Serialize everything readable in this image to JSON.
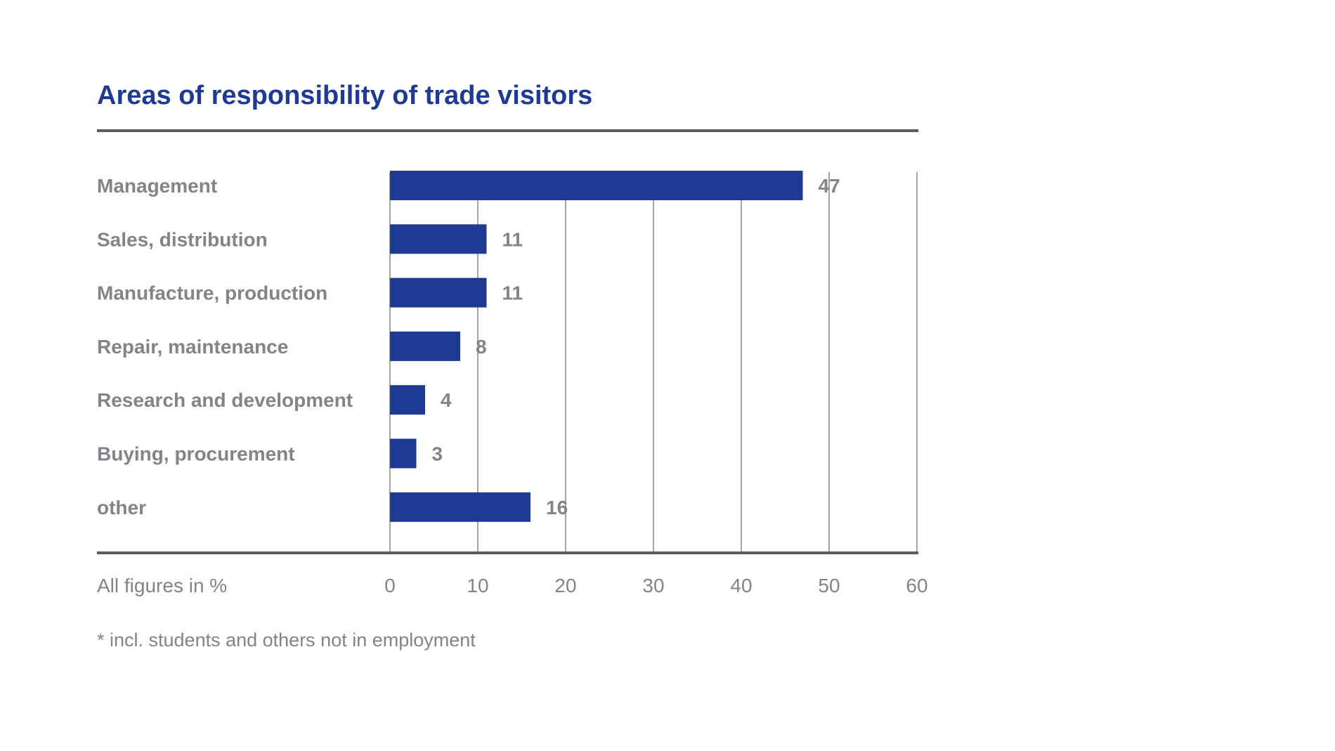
{
  "chart_data": {
    "type": "bar",
    "orientation": "horizontal",
    "title": "Areas of responsibility of trade visitors",
    "categories": [
      "Management",
      "Sales, distribution",
      "Manufacture, production",
      "Repair, maintenance",
      "Research and development",
      "Buying, procurement",
      "other"
    ],
    "values": [
      47,
      11,
      11,
      8,
      4,
      3,
      16
    ],
    "data_labels": [
      "47",
      "11",
      "11",
      "8",
      "4",
      "3",
      "16"
    ],
    "xlim": [
      0,
      60
    ],
    "ticks": [
      0,
      10,
      20,
      30,
      40,
      50,
      60
    ],
    "tick_labels": [
      "0",
      "10",
      "20",
      "30",
      "40",
      "50",
      "60"
    ],
    "unit_note": "All figures in %",
    "footnote": "* incl. students and others not in employment",
    "grid": true,
    "legend": "none",
    "colors": {
      "bar": "#1f3a93",
      "title": "#1f3a93",
      "text": "#7f858b",
      "rule": "#5a5d60",
      "grid": "#8a8d90"
    }
  }
}
